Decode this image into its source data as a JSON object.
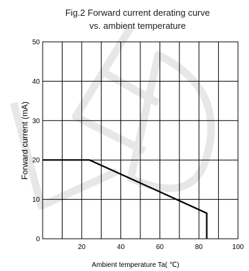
{
  "chart_data": {
    "type": "line",
    "title": "Fig.2 Forward current derating curve",
    "subtitle": "vs. ambient temperature",
    "xlabel": "Ambient temperature Ta(  ℃)",
    "ylabel": "Forward current (mA)",
    "xlim": [
      0,
      100
    ],
    "ylim": [
      0,
      50
    ],
    "x_ticks": [
      "20",
      "40",
      "60",
      "80",
      "100"
    ],
    "y_ticks": [
      "0",
      "10",
      "20",
      "30",
      "40",
      "50"
    ],
    "grid": {
      "vertical_every": 10,
      "horizontal_every": 10
    },
    "line_color": "#000000",
    "grid_color": "#000000",
    "series": [
      {
        "x": [
          0,
          24,
          84,
          84
        ],
        "y": [
          20,
          20,
          6.5,
          0
        ]
      }
    ]
  },
  "watermark": {
    "text": "LED",
    "color": "#e7e7e7"
  }
}
